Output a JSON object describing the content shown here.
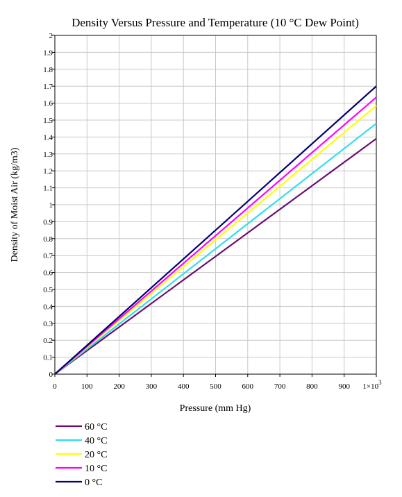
{
  "chart_data": {
    "type": "line",
    "title": "Density Versus Pressure and Temperature (10 °C Dew Point)",
    "xlabel": "Pressure (mm Hg)",
    "ylabel": "Density of Moist Air (kg/m3)",
    "xlim": [
      0,
      1000
    ],
    "ylim": [
      0,
      2
    ],
    "x_ticks": [
      "0",
      "100",
      "200",
      "300",
      "400",
      "500",
      "600",
      "700",
      "800",
      "900",
      "1×10"
    ],
    "x_tick_last_exponent": "3",
    "y_ticks": [
      "0",
      "0.1",
      "0.2",
      "0.3",
      "0.4",
      "0.5",
      "0.6",
      "0.7",
      "0.8",
      "0.9",
      "1",
      "1.1",
      "1.2",
      "1.3",
      "1.4",
      "1.5",
      "1.6",
      "1.7",
      "1.8",
      "1.9",
      "2"
    ],
    "grid": true,
    "legend_position": "bottom-left",
    "series": [
      {
        "name": "60 °C",
        "color": "#6a0d6e",
        "x": [
          0,
          1000
        ],
        "values": [
          0,
          1.39
        ]
      },
      {
        "name": "40 °C",
        "color": "#33ddee",
        "x": [
          0,
          1000
        ],
        "values": [
          0,
          1.48
        ]
      },
      {
        "name": "20 °C",
        "color": "#ffff00",
        "x": [
          0,
          1000
        ],
        "values": [
          0,
          1.585
        ]
      },
      {
        "name": "10 °C",
        "color": "#ff00ff",
        "x": [
          0,
          1000
        ],
        "values": [
          0,
          1.635
        ]
      },
      {
        "name": "0 °C",
        "color": "#00006e",
        "x": [
          0,
          1000
        ],
        "values": [
          0,
          1.7
        ]
      }
    ]
  }
}
